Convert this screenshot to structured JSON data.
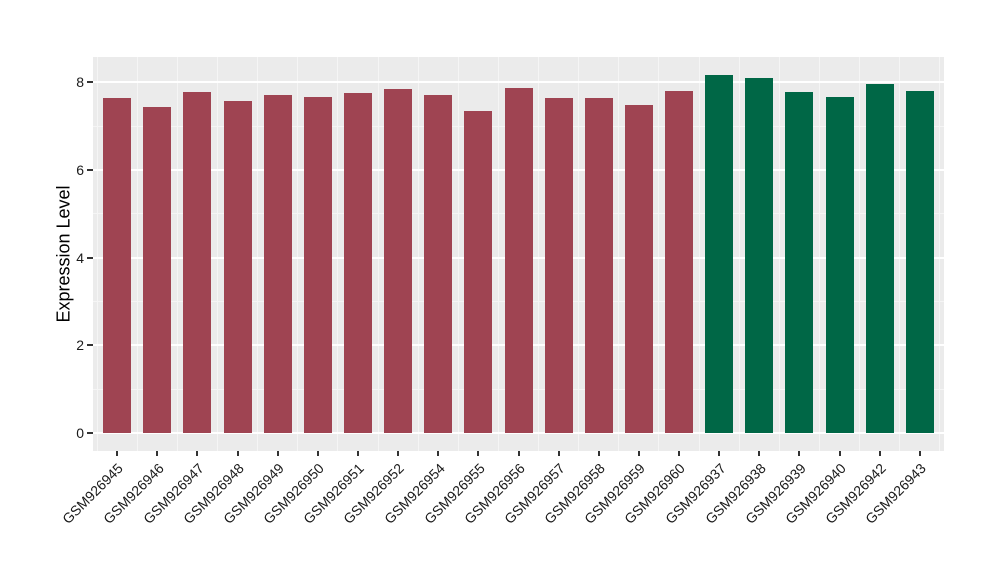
{
  "chart_data": {
    "type": "bar",
    "title": "",
    "xlabel": "",
    "ylabel": "Expression Level",
    "ylim": [
      0,
      8.58
    ],
    "yticks": [
      0,
      2,
      4,
      6,
      8
    ],
    "ytick_labels": [
      "0",
      "2",
      "4",
      "6",
      "8"
    ],
    "grid": "major and minor horizontal white gridlines, vertical white gridlines at category boundaries",
    "legend_position": "none",
    "categories": [
      "GSM926945",
      "GSM926946",
      "GSM926947",
      "GSM926948",
      "GSM926949",
      "GSM926950",
      "GSM926951",
      "GSM926952",
      "GSM926954",
      "GSM926955",
      "GSM926956",
      "GSM926957",
      "GSM926958",
      "GSM926959",
      "GSM926960",
      "GSM926937",
      "GSM926938",
      "GSM926939",
      "GSM926940",
      "GSM926942",
      "GSM926943"
    ],
    "values": [
      7.64,
      7.44,
      7.77,
      7.58,
      7.7,
      7.66,
      7.76,
      7.84,
      7.7,
      7.35,
      7.88,
      7.64,
      7.65,
      7.48,
      7.81,
      8.17,
      8.09,
      7.78,
      7.66,
      7.96,
      7.79
    ],
    "bar_colors": [
      "#9F4452",
      "#9F4452",
      "#9F4452",
      "#9F4452",
      "#9F4452",
      "#9F4452",
      "#9F4452",
      "#9F4452",
      "#9F4452",
      "#9F4452",
      "#9F4452",
      "#9F4452",
      "#9F4452",
      "#9F4452",
      "#9F4452",
      "#006746",
      "#006746",
      "#006746",
      "#006746",
      "#006746",
      "#006746"
    ]
  },
  "colors": {
    "red_group": "#9F4452",
    "green_group": "#006746",
    "panel_background": "#EBEBEB",
    "grid_major": "#FFFFFF",
    "grid_minor": "#F5F5F5",
    "tick_mark": "#333333",
    "tick_text": "#1a1a1a",
    "figure_background": "#FFFFFF"
  }
}
